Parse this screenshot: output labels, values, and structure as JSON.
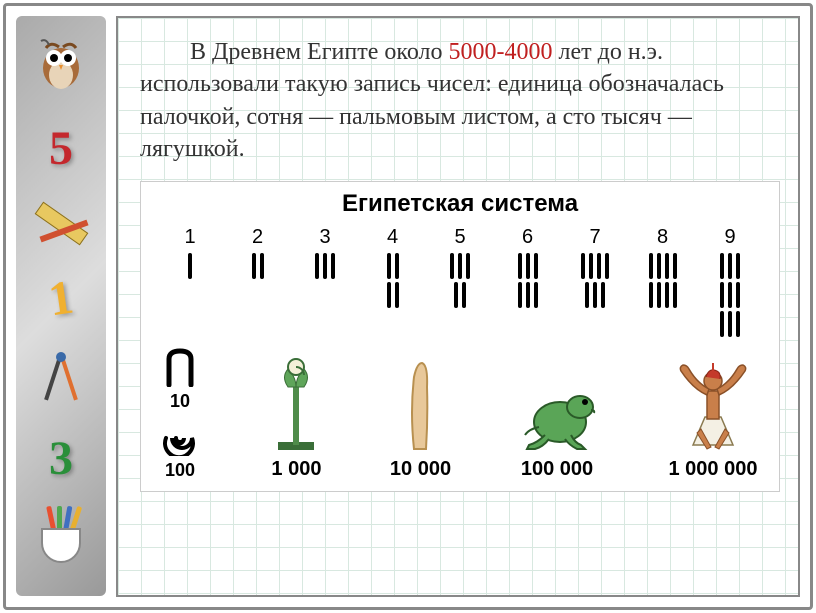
{
  "body_text": {
    "p1_a": "В Древнем Египте около ",
    "p1_range": "5000-4000",
    "p1_b": " лет до н.э. использовали такую запись чисел: единица обозначалась палочкой, сотня — пальмовым листом, а сто тысяч — лягушкой."
  },
  "chart": {
    "title": "Египетская система",
    "units": [
      {
        "n": "1",
        "rows": [
          1
        ]
      },
      {
        "n": "2",
        "rows": [
          2
        ]
      },
      {
        "n": "3",
        "rows": [
          3
        ]
      },
      {
        "n": "4",
        "rows": [
          2,
          2
        ]
      },
      {
        "n": "5",
        "rows": [
          3,
          2
        ]
      },
      {
        "n": "6",
        "rows": [
          3,
          3
        ]
      },
      {
        "n": "7",
        "rows": [
          4,
          3
        ]
      },
      {
        "n": "8",
        "rows": [
          4,
          4
        ]
      },
      {
        "n": "9",
        "rows": [
          3,
          3,
          3
        ]
      }
    ],
    "symbols": [
      {
        "label": "10"
      },
      {
        "label": "100"
      },
      {
        "label": "1 000"
      },
      {
        "label": "10 000"
      },
      {
        "label": "100 000"
      },
      {
        "label": "1 000 000"
      }
    ]
  },
  "sidebar": {
    "num5": "5",
    "num1": "1",
    "num3": "3"
  },
  "colors": {
    "accent_red": "#c02020",
    "frog_green": "#5aa557",
    "lotus_green": "#4f8c4a",
    "finger_tan": "#e8c89a",
    "man_skin": "#c97f4a"
  }
}
